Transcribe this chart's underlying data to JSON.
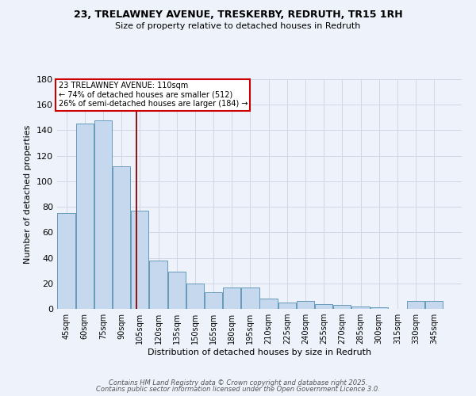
{
  "title": "23, TRELAWNEY AVENUE, TRESKERBY, REDRUTH, TR15 1RH",
  "subtitle": "Size of property relative to detached houses in Redruth",
  "xlabel": "Distribution of detached houses by size in Redruth",
  "ylabel": "Number of detached properties",
  "bar_color": "#c5d8ed",
  "bar_edge_color": "#6699bb",
  "bins": [
    45,
    60,
    75,
    90,
    105,
    120,
    135,
    150,
    165,
    180,
    195,
    210,
    225,
    240,
    255,
    270,
    285,
    300,
    315,
    330,
    345,
    360
  ],
  "bin_labels": [
    "45sqm",
    "60sqm",
    "75sqm",
    "90sqm",
    "105sqm",
    "120sqm",
    "135sqm",
    "150sqm",
    "165sqm",
    "180sqm",
    "195sqm",
    "210sqm",
    "225sqm",
    "240sqm",
    "255sqm",
    "270sqm",
    "285sqm",
    "300sqm",
    "315sqm",
    "330sqm",
    "345sqm"
  ],
  "values": [
    75,
    145,
    148,
    112,
    77,
    38,
    29,
    20,
    13,
    17,
    17,
    8,
    5,
    6,
    4,
    3,
    2,
    1,
    0,
    6,
    6
  ],
  "property_size": 110,
  "vline_color": "#8b0000",
  "annotation_text": "23 TRELAWNEY AVENUE: 110sqm\n← 74% of detached houses are smaller (512)\n26% of semi-detached houses are larger (184) →",
  "annotation_box_color": "#ffffff",
  "annotation_box_edge_color": "#cc0000",
  "ylim": [
    0,
    180
  ],
  "yticks": [
    0,
    20,
    40,
    60,
    80,
    100,
    120,
    140,
    160,
    180
  ],
  "grid_color": "#d0d8e8",
  "background_color": "#eef2fb",
  "footer_line1": "Contains HM Land Registry data © Crown copyright and database right 2025.",
  "footer_line2": "Contains public sector information licensed under the Open Government Licence 3.0."
}
